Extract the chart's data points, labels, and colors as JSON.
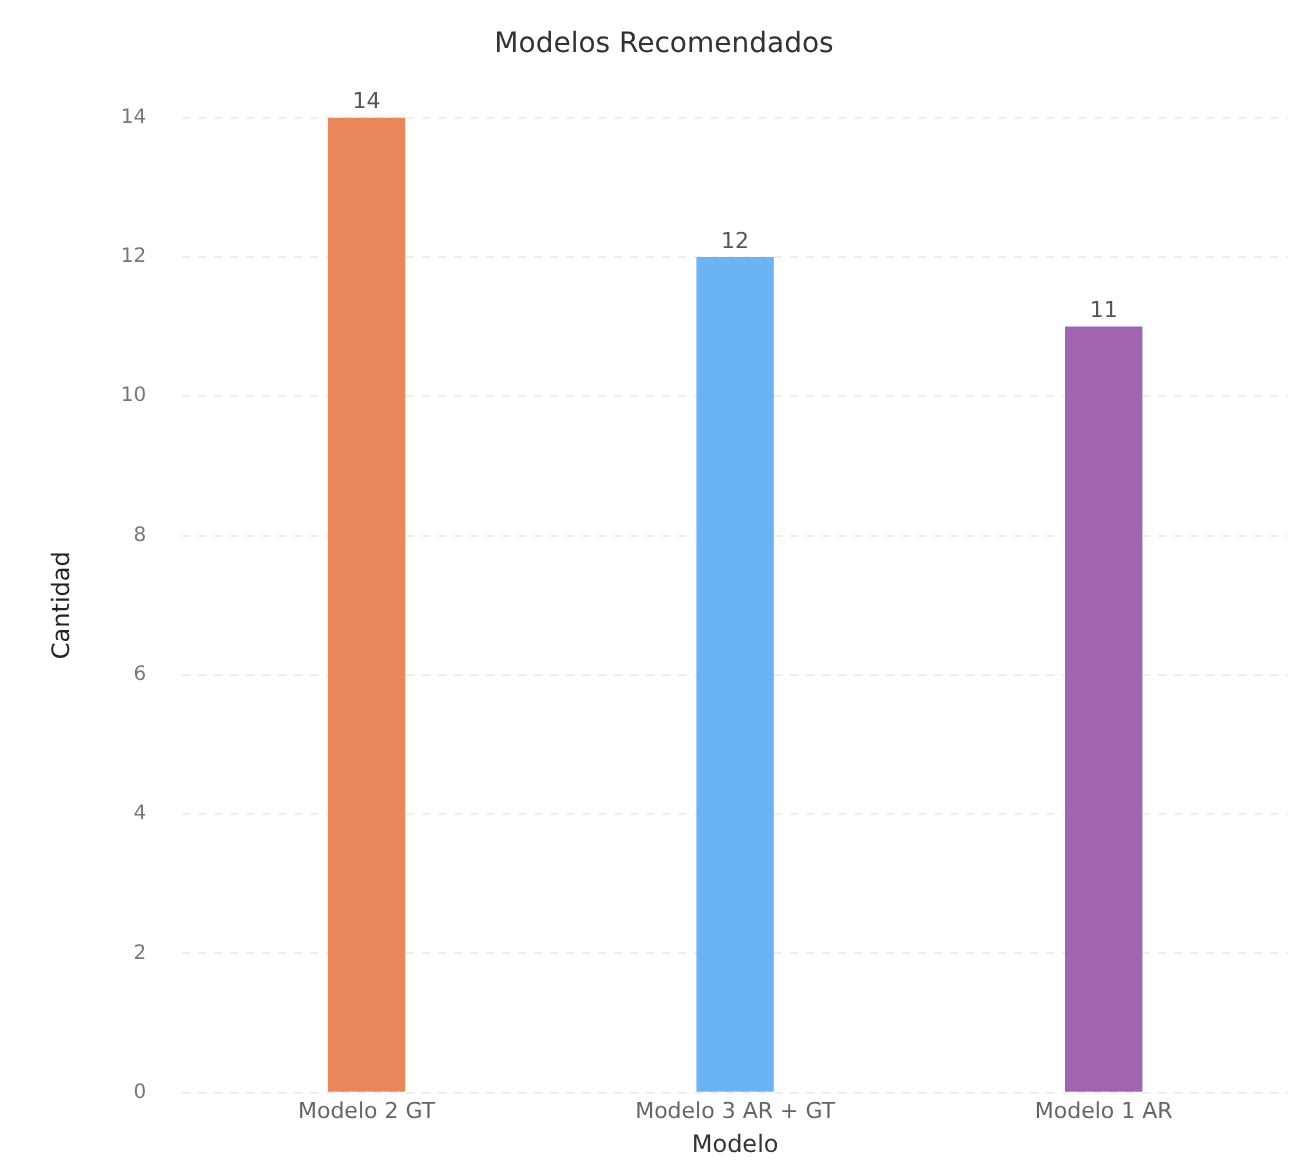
{
  "chart_data": {
    "type": "bar",
    "title": "Modelos Recomendados",
    "xlabel": "Modelo",
    "ylabel": "Cantidad",
    "categories": [
      "Modelo 2 GT",
      "Modelo 3 AR + GT",
      "Modelo 1 AR"
    ],
    "values": [
      14,
      12,
      11
    ],
    "colors": [
      "#e8875a",
      "#6ab4f5",
      "#a064b0"
    ],
    "ylim": [
      0,
      14
    ],
    "yticks": [
      0,
      2,
      4,
      6,
      8,
      10,
      12,
      14
    ],
    "grid": "y",
    "data_labels": true
  }
}
